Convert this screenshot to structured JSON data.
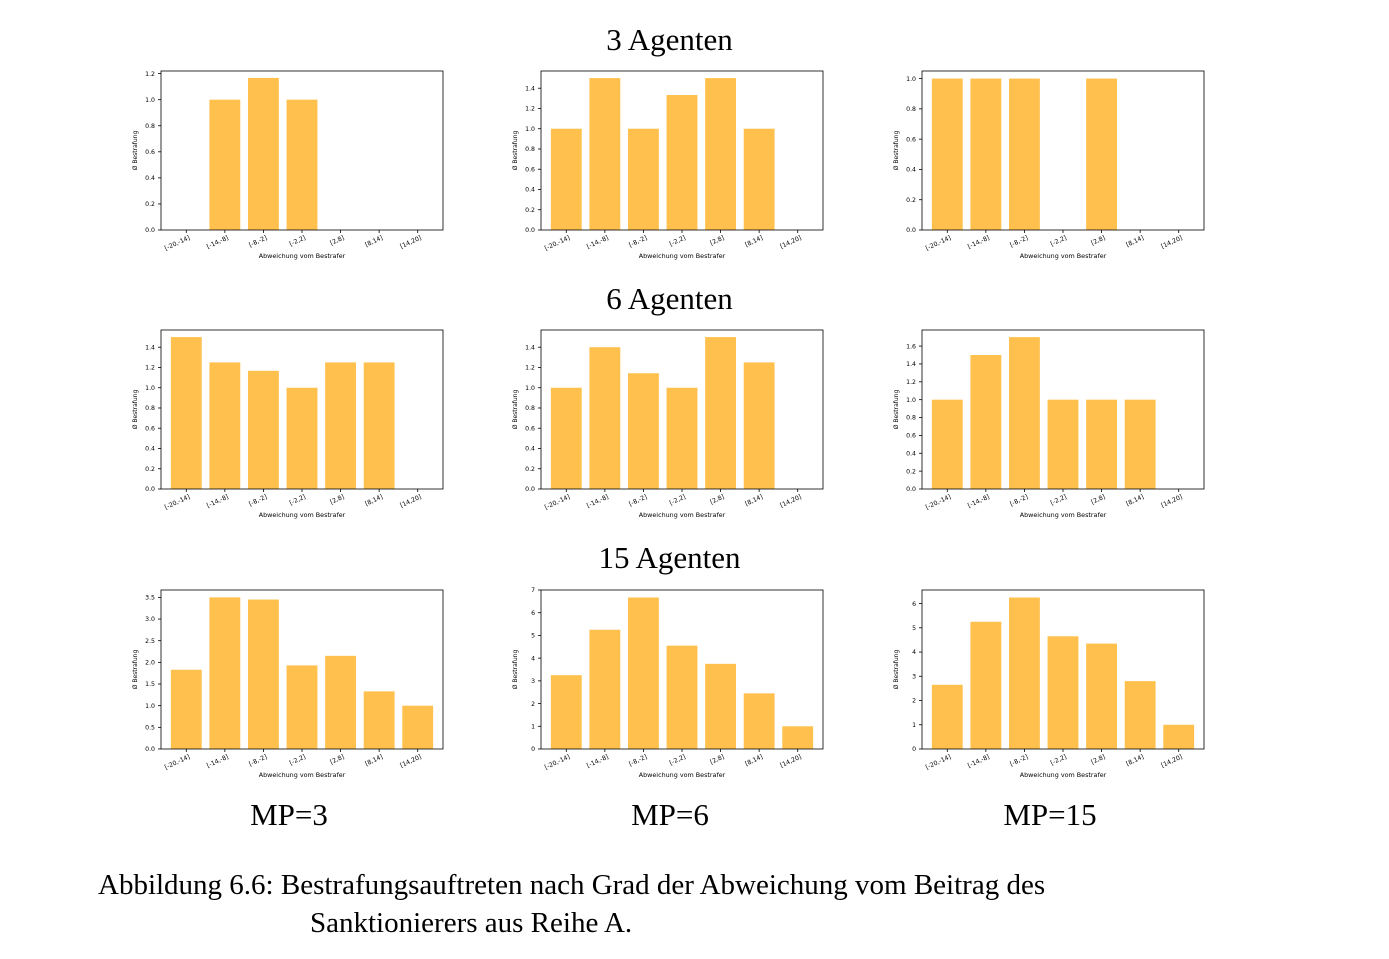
{
  "row_titles": [
    "3 Agenten",
    "6 Agenten",
    "15 Agenten"
  ],
  "column_labels": [
    "MP=3",
    "MP=6",
    "MP=15"
  ],
  "caption": {
    "label": "Abbildung 6.6:",
    "line1": "Bestrafungsauftreten nach Grad der Abweichung vom Beitrag des",
    "line2": "Sanktionierers aus Reihe A."
  },
  "colors": {
    "bar": "#ffc04d",
    "axis": "#000000"
  },
  "chart_data": [
    {
      "type": "bar",
      "row": "3 Agenten",
      "column": "MP=3",
      "categories": [
        "[-20,-14]",
        "[-14,-8]",
        "[-8,-2]",
        "[-2,2]",
        "[2,8]",
        "[8,14]",
        "[14,20]"
      ],
      "values": [
        0,
        1.0,
        1.167,
        1.0,
        0,
        0,
        0
      ],
      "xlabel": "Abweichung vom Bestrafer",
      "ylabel": "Ø Bestrafung",
      "ylim": [
        0,
        1.22
      ],
      "yticks": [
        0.0,
        0.2,
        0.4,
        0.6,
        0.8,
        1.0,
        1.2
      ],
      "grid": false
    },
    {
      "type": "bar",
      "row": "3 Agenten",
      "column": "MP=6",
      "categories": [
        "[-20,-14]",
        "[-14,-8]",
        "[-8,-2]",
        "[-2,2]",
        "[2,8]",
        "[8,14]",
        "[14,20]"
      ],
      "values": [
        1.0,
        1.5,
        1.0,
        1.333,
        1.5,
        1.0,
        0
      ],
      "xlabel": "Abweichung vom Bestrafer",
      "ylabel": "Ø Bestrafung",
      "ylim": [
        0,
        1.57
      ],
      "yticks": [
        0.0,
        0.2,
        0.4,
        0.6,
        0.8,
        1.0,
        1.2,
        1.4
      ],
      "grid": false
    },
    {
      "type": "bar",
      "row": "3 Agenten",
      "column": "MP=15",
      "categories": [
        "[-20,-14]",
        "[-14,-8]",
        "[-8,-2]",
        "[-2,2]",
        "[2,8]",
        "[8,14]",
        "[14,20]"
      ],
      "values": [
        1.0,
        1.0,
        1.0,
        0,
        1.0,
        0,
        0
      ],
      "xlabel": "Abweichung vom Bestrafer",
      "ylabel": "Ø Bestrafung",
      "ylim": [
        0,
        1.05
      ],
      "yticks": [
        0.0,
        0.2,
        0.4,
        0.6,
        0.8,
        1.0
      ],
      "grid": false
    },
    {
      "type": "bar",
      "row": "6 Agenten",
      "column": "MP=3",
      "categories": [
        "[-20,-14]",
        "[-14,-8]",
        "[-8,-2]",
        "[-2,2]",
        "[2,8]",
        "[8,14]",
        "[14,20]"
      ],
      "values": [
        1.5,
        1.25,
        1.167,
        1.0,
        1.25,
        1.25,
        0
      ],
      "xlabel": "Abweichung vom Bestrafer",
      "ylabel": "Ø Bestrafung",
      "ylim": [
        0,
        1.57
      ],
      "yticks": [
        0.0,
        0.2,
        0.4,
        0.6,
        0.8,
        1.0,
        1.2,
        1.4
      ],
      "grid": false
    },
    {
      "type": "bar",
      "row": "6 Agenten",
      "column": "MP=6",
      "categories": [
        "[-20,-14]",
        "[-14,-8]",
        "[-8,-2]",
        "[-2,2]",
        "[2,8]",
        "[8,14]",
        "[14,20]"
      ],
      "values": [
        1.0,
        1.4,
        1.143,
        1.0,
        1.5,
        1.25,
        0
      ],
      "xlabel": "Abweichung vom Bestrafer",
      "ylabel": "Ø Bestrafung",
      "ylim": [
        0,
        1.57
      ],
      "yticks": [
        0.0,
        0.2,
        0.4,
        0.6,
        0.8,
        1.0,
        1.2,
        1.4
      ],
      "grid": false
    },
    {
      "type": "bar",
      "row": "6 Agenten",
      "column": "MP=15",
      "categories": [
        "[-20,-14]",
        "[-14,-8]",
        "[-8,-2]",
        "[-2,2]",
        "[2,8]",
        "[8,14]",
        "[14,20]"
      ],
      "values": [
        1.0,
        1.5,
        1.7,
        1.0,
        1.0,
        1.0,
        0
      ],
      "xlabel": "Abweichung vom Bestrafer",
      "ylabel": "Ø Bestrafung",
      "ylim": [
        0,
        1.78
      ],
      "yticks": [
        0.0,
        0.2,
        0.4,
        0.6,
        0.8,
        1.0,
        1.2,
        1.4,
        1.6
      ],
      "grid": false
    },
    {
      "type": "bar",
      "row": "15 Agenten",
      "column": "MP=3",
      "categories": [
        "[-20,-14]",
        "[-14,-8]",
        "[-8,-2]",
        "[-2,2]",
        "[2,8]",
        "[8,14]",
        "[14,20]"
      ],
      "values": [
        1.83,
        3.5,
        3.45,
        1.93,
        2.15,
        1.33,
        1.0
      ],
      "xlabel": "Abweichung vom Bestrafer",
      "ylabel": "Ø Bestrafung",
      "ylim": [
        0,
        3.67
      ],
      "yticks": [
        0.0,
        0.5,
        1.0,
        1.5,
        2.0,
        2.5,
        3.0,
        3.5
      ],
      "grid": false
    },
    {
      "type": "bar",
      "row": "15 Agenten",
      "column": "MP=6",
      "categories": [
        "[-20,-14]",
        "[-14,-8]",
        "[-8,-2]",
        "[-2,2]",
        "[2,8]",
        "[8,14]",
        "[14,20]"
      ],
      "values": [
        3.25,
        5.25,
        6.67,
        4.55,
        3.75,
        2.45,
        1.0
      ],
      "xlabel": "Abweichung vom Bestrafer",
      "ylabel": "Ø Bestrafung",
      "ylim": [
        0,
        7.0
      ],
      "yticks": [
        0,
        1,
        2,
        3,
        4,
        5,
        6,
        7
      ],
      "grid": false
    },
    {
      "type": "bar",
      "row": "15 Agenten",
      "column": "MP=15",
      "categories": [
        "[-20,-14]",
        "[-14,-8]",
        "[-8,-2]",
        "[-2,2]",
        "[2,8]",
        "[8,14]",
        "[14,20]"
      ],
      "values": [
        2.65,
        5.25,
        6.25,
        4.65,
        4.35,
        2.8,
        1.0
      ],
      "xlabel": "Abweichung vom Bestrafer",
      "ylabel": "Ø Bestrafung",
      "ylim": [
        0,
        6.56
      ],
      "yticks": [
        0,
        1,
        2,
        3,
        4,
        5,
        6
      ],
      "grid": false
    }
  ]
}
